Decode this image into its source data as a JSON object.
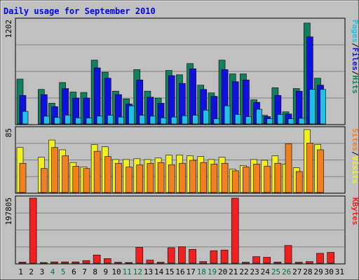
{
  "chart_data": {
    "type": "bar",
    "title": "Daily usage for September 2010",
    "categories": [
      "1",
      "2",
      "3",
      "4",
      "5",
      "6",
      "7",
      "8",
      "9",
      "10",
      "11",
      "12",
      "13",
      "14",
      "15",
      "16",
      "17",
      "18",
      "19",
      "20",
      "21",
      "22",
      "23",
      "24",
      "25",
      "26",
      "27",
      "28",
      "29",
      "30",
      "31"
    ],
    "weekend_categories": [
      "4",
      "5",
      "11",
      "12",
      "18",
      "19",
      "25",
      "26"
    ],
    "panels": [
      {
        "id": "hits",
        "scale_max_label": "1202",
        "ylim": [
          0,
          1202
        ],
        "series": [
          {
            "name": "Hits",
            "color": "#108060",
            "values": [
              520,
              0,
              400,
              240,
              480,
              370,
              365,
              740,
              600,
              380,
              290,
              630,
              380,
              300,
              620,
              570,
              700,
              450,
              360,
              740,
              580,
              580,
              280,
              100,
              420,
              140,
              410,
              1170,
              530,
              0,
              0
            ]
          },
          {
            "name": "Files",
            "color": "#1010e0",
            "values": [
              330,
              0,
              340,
              200,
              410,
              300,
              300,
              650,
              530,
              340,
              230,
              510,
              310,
              240,
              560,
              470,
              640,
              400,
              320,
              630,
              490,
              510,
              250,
              85,
              330,
              115,
              380,
              1010,
              450,
              0,
              0
            ]
          },
          {
            "name": "Pages",
            "color": "#20c0e8",
            "values": [
              145,
              0,
              90,
              75,
              100,
              70,
              68,
              90,
              100,
              80,
              210,
              100,
              90,
              70,
              80,
              95,
              100,
              160,
              60,
              210,
              110,
              85,
              170,
              60,
              110,
              60,
              65,
              400,
              400,
              0,
              0
            ]
          }
        ]
      },
      {
        "id": "visits",
        "scale_max_label": "85",
        "ylim": [
          0,
          85
        ],
        "series": [
          {
            "name": "Visits",
            "color": "#f0f020",
            "values": [
              60,
              0,
              47,
              70,
              57,
              40,
              34,
              64,
              61,
              44,
              44,
              45,
              44,
              46,
              50,
              50,
              49,
              48,
              44,
              47,
              31,
              36,
              44,
              43,
              49,
              38,
              33,
              84,
              64,
              0,
              0
            ]
          },
          {
            "name": "Sites",
            "color": "#f08020",
            "values": [
              39,
              0,
              32,
              60,
              49,
              35,
              32,
              55,
              48,
              39,
              34,
              37,
              39,
              40,
              37,
              39,
              43,
              40,
              38,
              39,
              29,
              34,
              38,
              35,
              39,
              65,
              28,
              66,
              57,
              0,
              0
            ]
          }
        ]
      },
      {
        "id": "kbytes",
        "scale_max_label": "197805",
        "ylim": [
          0,
          197805
        ],
        "series": [
          {
            "name": "KBytes",
            "color": "#f02020",
            "values": [
              3500,
              197805,
              1500,
              4000,
              4000,
              4000,
              8000,
              25000,
              14000,
              3000,
              2000,
              48000,
              9500,
              3000,
              47000,
              50000,
              42000,
              5000,
              38000,
              40000,
              197805,
              3000,
              20000,
              18000,
              3500,
              54000,
              3000,
              5000,
              30000,
              33000,
              0
            ]
          }
        ]
      }
    ]
  }
}
